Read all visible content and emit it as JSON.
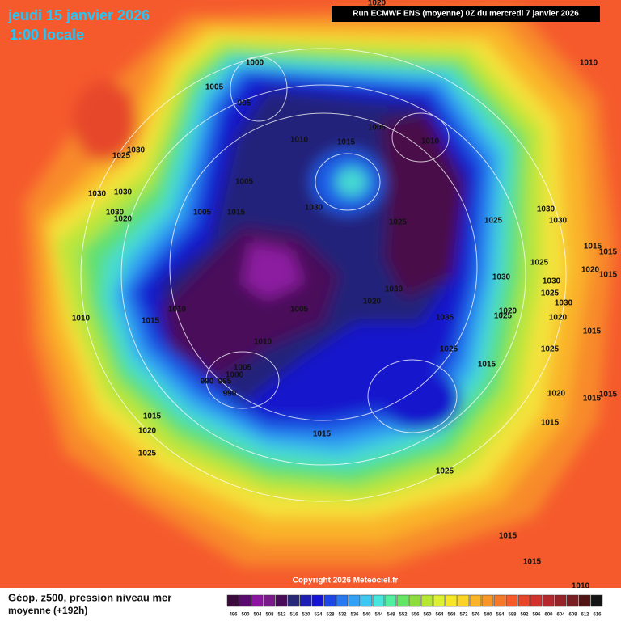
{
  "header": {
    "date": "jeudi 15 janvier 2026",
    "time": "1:00 locale",
    "run": "Run ECMWF ENS (moyenne) 0Z du mercredi 7 janvier 2026"
  },
  "copyright": "Copyright 2026 Meteociel.fr",
  "caption": {
    "line1": "Géop. z500, pression niveau mer",
    "line2": "moyenne  (+192h)"
  },
  "isobar_labels": [
    "1020",
    "1000",
    "1005",
    "995",
    "1030",
    "1025",
    "1030",
    "1030",
    "1030",
    "1020",
    "1005",
    "1005",
    "1015",
    "1010",
    "1015",
    "1005",
    "1010",
    "1030",
    "1025",
    "1025",
    "1030",
    "1030",
    "1010",
    "1015",
    "1015",
    "1025",
    "1030",
    "1020",
    "1015",
    "1030",
    "1025",
    "1030",
    "1020",
    "1025",
    "1020",
    "1030",
    "1020",
    "1005",
    "1010",
    "1015",
    "1010",
    "1035",
    "1010",
    "1025",
    "1015",
    "1015",
    "1025",
    "1005",
    "1000",
    "990",
    "995",
    "990",
    "1020",
    "1015",
    "1015",
    "1015",
    "1020",
    "1015",
    "1025",
    "1015",
    "1025",
    "1015",
    "1015",
    "1010"
  ],
  "legend": {
    "values": [
      496,
      500,
      504,
      508,
      512,
      516,
      520,
      524,
      528,
      532,
      536,
      540,
      544,
      548,
      552,
      556,
      560,
      564,
      568,
      572,
      576,
      580,
      584,
      588,
      592,
      596,
      600,
      604,
      608,
      612,
      616
    ],
    "colors": [
      "#3c0a3c",
      "#5a0a6e",
      "#8c14a0",
      "#7a1a8a",
      "#4a0a5a",
      "#282878",
      "#1e1eb4",
      "#1414d2",
      "#1e46e6",
      "#2878f0",
      "#32a0f5",
      "#3cc8f0",
      "#46e6dc",
      "#50f0a0",
      "#64e664",
      "#8cdc3c",
      "#b4e632",
      "#dcf032",
      "#f5e628",
      "#fad228",
      "#fab428",
      "#f89628",
      "#f57828",
      "#f55a28",
      "#e6462a",
      "#d2322d",
      "#b4282d",
      "#962328",
      "#781e23",
      "#501414",
      "#141414"
    ]
  }
}
